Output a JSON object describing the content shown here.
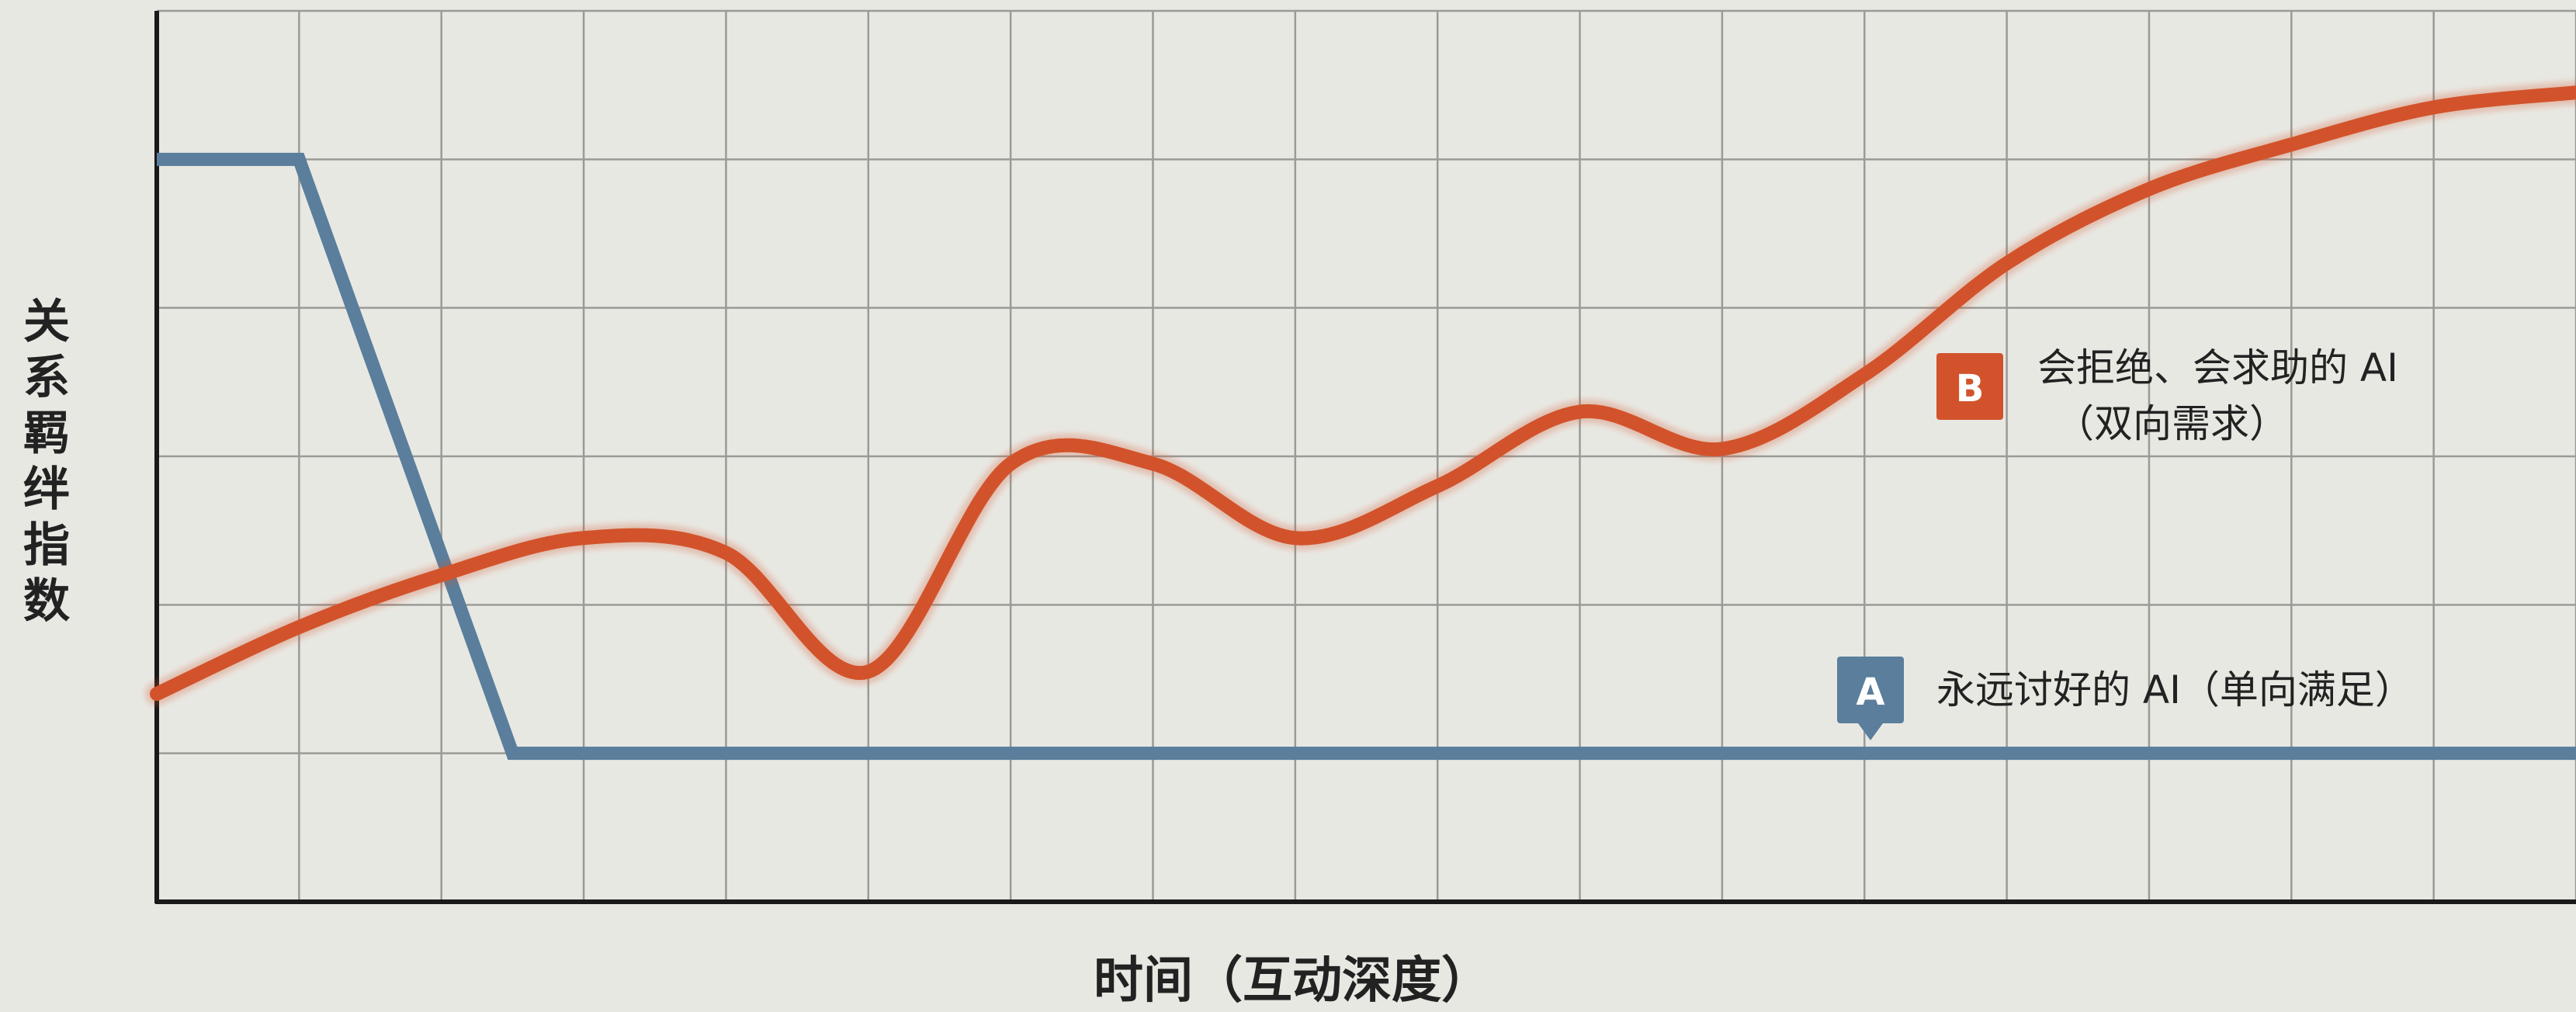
{
  "chart_data": {
    "type": "line",
    "xlabel": "时间（互动深度）",
    "ylabel": "关系羁绊指数",
    "xlim": [
      0,
      17
    ],
    "ylim": [
      0,
      6
    ],
    "grid": true,
    "series": [
      {
        "key": "A",
        "name": "永远讨好的 AI（单向满足）",
        "color": "#5a7e9c",
        "x": [
          0,
          1,
          2.5,
          17
        ],
        "y": [
          5,
          5,
          1,
          1
        ]
      },
      {
        "key": "B",
        "name": "会拒绝、会求助的 AI",
        "name_sub": "（双向需求）",
        "color": "#d2532b",
        "x": [
          0,
          1,
          2,
          3,
          4,
          5,
          6,
          7,
          8,
          9,
          10,
          11,
          12,
          13,
          14,
          15,
          16,
          17
        ],
        "y": [
          1.4,
          1.85,
          2.2,
          2.45,
          2.35,
          1.55,
          2.95,
          2.95,
          2.45,
          2.8,
          3.3,
          3.05,
          3.55,
          4.3,
          4.8,
          5.1,
          5.35,
          5.45
        ]
      }
    ],
    "annotations": [
      {
        "badge": "A",
        "series": "A"
      },
      {
        "badge": "B",
        "series": "B"
      }
    ]
  }
}
